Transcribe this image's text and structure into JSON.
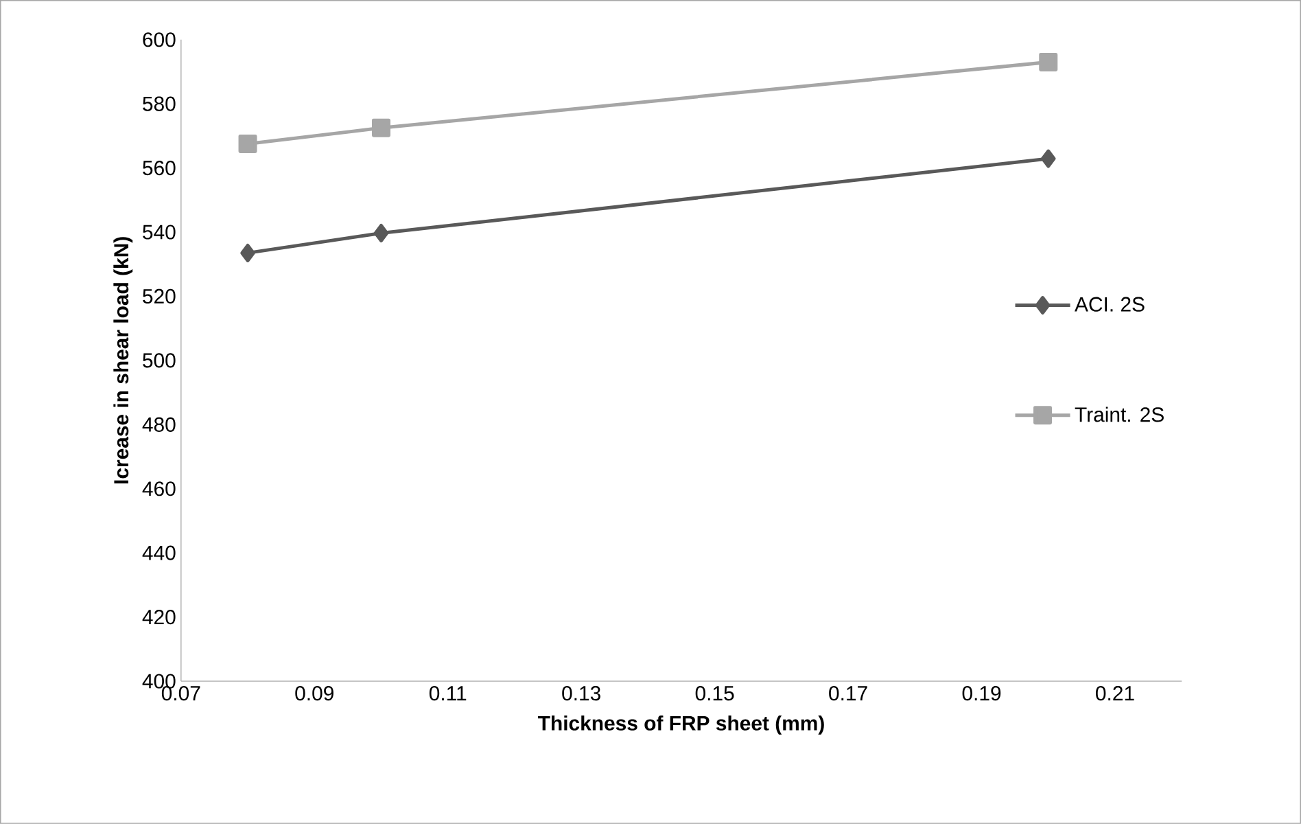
{
  "chart_data": {
    "type": "line",
    "xlabel": "Thickness of FRP sheet (mm)",
    "ylabel": "Icrease in shear load (kN)",
    "xlim": [
      0.07,
      0.22
    ],
    "xticks": [
      0.07,
      0.09,
      0.11,
      0.13,
      0.15,
      0.17,
      0.19,
      0.21
    ],
    "ylim": [
      400,
      600
    ],
    "yticks": [
      400,
      420,
      440,
      460,
      480,
      500,
      520,
      540,
      560,
      580,
      600
    ],
    "grid": false,
    "legend": "right",
    "line_style": "solid",
    "series": [
      {
        "name": "ACI. 2S",
        "color": "#595959",
        "marker": "diamond",
        "x": [
          0.08,
          0.1,
          0.2
        ],
        "values": [
          533.5,
          539.7,
          562.9
        ]
      },
      {
        "name": "Traint. 2S",
        "color": "#a6a6a6",
        "marker": "square",
        "x": [
          0.08,
          0.1,
          0.2
        ],
        "values": [
          567.5,
          572.5,
          593
        ]
      }
    ]
  }
}
